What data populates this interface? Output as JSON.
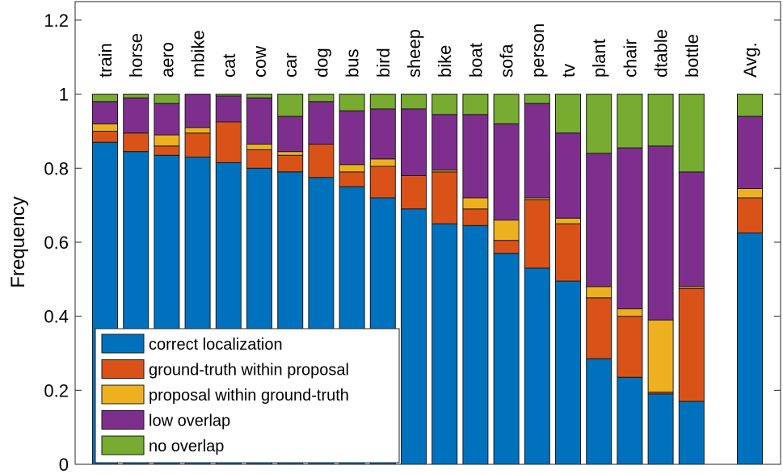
{
  "chart_data": {
    "type": "bar",
    "stacked": true,
    "title": "",
    "xlabel": "",
    "ylabel": "Frequency",
    "ylim": [
      0,
      1.25
    ],
    "yticks": [
      "0",
      "0.2",
      "0.4",
      "0.6",
      "0.8",
      "1",
      "1.2"
    ],
    "ytick_values": [
      0,
      0.2,
      0.4,
      0.6,
      0.8,
      1,
      1.2
    ],
    "categories": [
      "train",
      "horse",
      "aero",
      "mbike",
      "cat",
      "cow",
      "car",
      "dog",
      "bus",
      "bird",
      "sheep",
      "bike",
      "boat",
      "sofa",
      "person",
      "tv",
      "plant",
      "chair",
      "dtable",
      "bottle",
      "Avg."
    ],
    "legend_position": "bottom-left",
    "series": [
      {
        "name": "correct localization",
        "color": "#0072BD",
        "values": [
          0.87,
          0.845,
          0.835,
          0.83,
          0.815,
          0.8,
          0.79,
          0.775,
          0.75,
          0.72,
          0.69,
          0.65,
          0.645,
          0.57,
          0.53,
          0.495,
          0.285,
          0.235,
          0.19,
          0.17,
          0.625
        ]
      },
      {
        "name": "ground-truth within proposal",
        "color": "#D95319",
        "values": [
          0.03,
          0.05,
          0.025,
          0.065,
          0.11,
          0.05,
          0.045,
          0.09,
          0.04,
          0.085,
          0.09,
          0.14,
          0.045,
          0.035,
          0.185,
          0.155,
          0.165,
          0.165,
          0.005,
          0.305,
          0.095
        ]
      },
      {
        "name": "proposal within ground-truth",
        "color": "#EDB120",
        "values": [
          0.02,
          0,
          0.03,
          0.015,
          0,
          0.015,
          0.01,
          0,
          0.02,
          0.02,
          0,
          0.005,
          0.03,
          0.055,
          0.005,
          0.015,
          0.03,
          0.02,
          0.195,
          0.005,
          0.025
        ]
      },
      {
        "name": "low overlap",
        "color": "#7E2F8E",
        "values": [
          0.06,
          0.095,
          0.085,
          0.09,
          0.07,
          0.125,
          0.095,
          0.115,
          0.145,
          0.135,
          0.18,
          0.15,
          0.225,
          0.26,
          0.255,
          0.23,
          0.36,
          0.435,
          0.47,
          0.31,
          0.195
        ]
      },
      {
        "name": "no overlap",
        "color": "#77AC30",
        "values": [
          0.02,
          0.01,
          0.025,
          0,
          0.005,
          0.01,
          0.06,
          0.02,
          0.045,
          0.04,
          0.04,
          0.055,
          0.055,
          0.08,
          0.025,
          0.105,
          0.16,
          0.145,
          0.14,
          0.21,
          0.06
        ]
      }
    ]
  }
}
